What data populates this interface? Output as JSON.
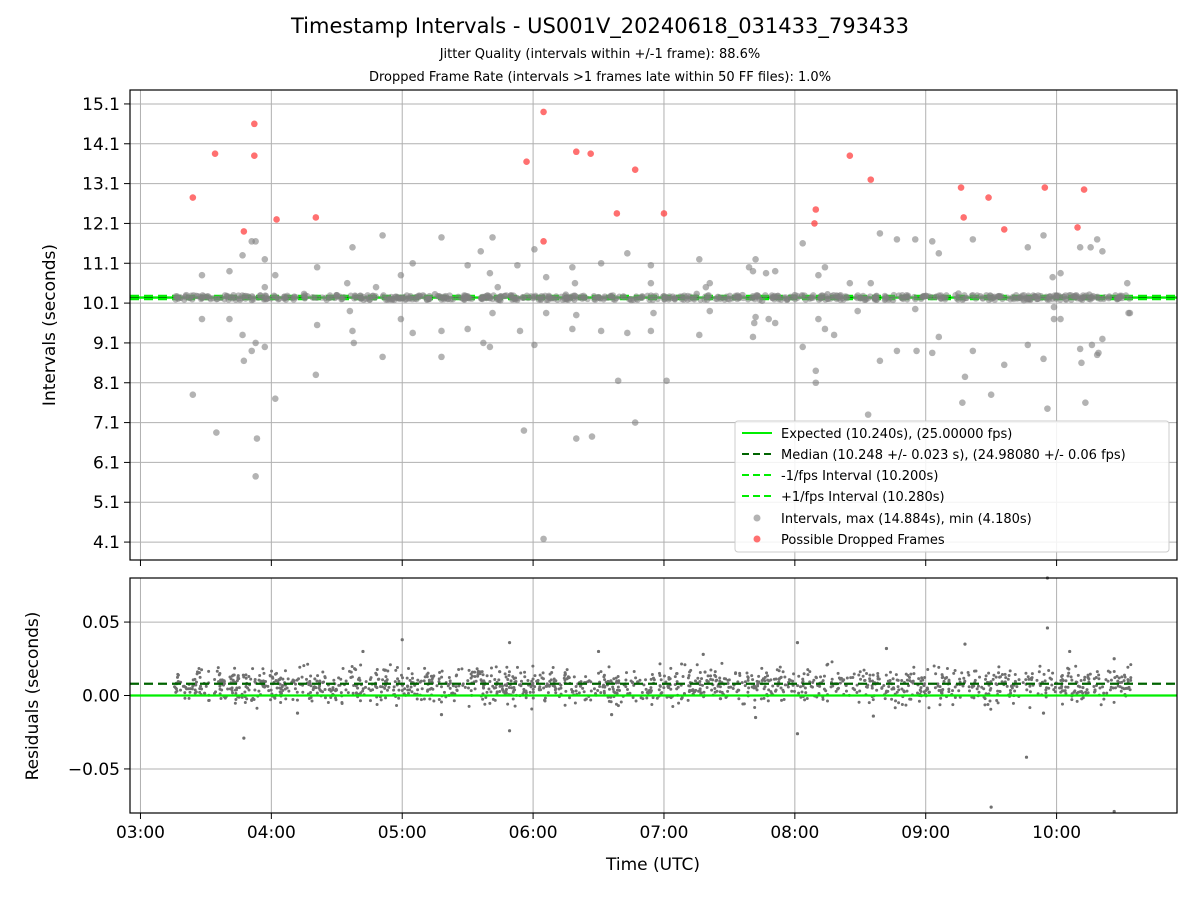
{
  "chart_data": [
    {
      "type": "scatter",
      "title": "Timestamp Intervals - US001V_20240618_031433_793433",
      "subtitle_lines": [
        "Jitter Quality (intervals within +/-1 frame): 88.6%",
        "Dropped Frame Rate (intervals >1 frames late within 50 FF files): 1.0%"
      ],
      "xlabel": "Time (UTC)",
      "ylabel": "Intervals (seconds)",
      "x_axis_unit": "hours UTC",
      "xlim": [
        2.92,
        10.92
      ],
      "ylim": [
        3.65,
        15.45
      ],
      "x_tick_values": [
        3,
        4,
        5,
        6,
        7,
        8,
        9,
        10
      ],
      "x_tick_labels": [
        "03:00",
        "04:00",
        "05:00",
        "06:00",
        "07:00",
        "08:00",
        "09:00",
        "10:00"
      ],
      "y_ticks": [
        4.1,
        5.1,
        6.1,
        7.1,
        8.1,
        9.1,
        10.1,
        11.1,
        12.1,
        13.1,
        14.1,
        15.1
      ],
      "y_tick_labels": [
        "4.1",
        "5.1",
        "6.1",
        "7.1",
        "8.1",
        "9.1",
        "10.1",
        "11.1",
        "12.1",
        "13.1",
        "14.1",
        "15.1"
      ],
      "grid": true,
      "legend_position": "lower-right",
      "reference_lines": [
        {
          "name": "Expected (10.240s), (25.00000 fps)",
          "y": 10.24,
          "style": "solid",
          "color": "#00ee00"
        },
        {
          "name": "Median (10.248 +/- 0.023 s), (24.98080 +/- 0.06 fps)",
          "y": 10.248,
          "style": "dashed",
          "color": "#006400"
        },
        {
          "name": "-1/fps Interval (10.200s)",
          "y": 10.2,
          "style": "dashed",
          "color": "#00ee00"
        },
        {
          "name": "+1/fps Interval (10.280s)",
          "y": 10.28,
          "style": "dashed",
          "color": "#00ee00"
        }
      ],
      "series": [
        {
          "name": "Intervals, max (14.884s), min (4.180s)",
          "color": "#808080",
          "points": [
            [
              3.4,
              7.8
            ],
            [
              3.47,
              10.8
            ],
            [
              3.47,
              9.7
            ],
            [
              3.58,
              6.85
            ],
            [
              3.68,
              10.9
            ],
            [
              3.68,
              9.7
            ],
            [
              3.78,
              11.3
            ],
            [
              3.78,
              9.3
            ],
            [
              3.79,
              8.65
            ],
            [
              3.85,
              8.9
            ],
            [
              3.85,
              11.65
            ],
            [
              3.88,
              11.65
            ],
            [
              3.88,
              9.1
            ],
            [
              3.89,
              6.7
            ],
            [
              3.88,
              5.75
            ],
            [
              3.95,
              11.2
            ],
            [
              3.95,
              9.0
            ],
            [
              3.95,
              10.5
            ],
            [
              4.03,
              10.8
            ],
            [
              4.03,
              7.7
            ],
            [
              4.35,
              11.0
            ],
            [
              4.35,
              9.55
            ],
            [
              4.34,
              8.3
            ],
            [
              4.58,
              10.6
            ],
            [
              4.6,
              9.9
            ],
            [
              4.62,
              11.5
            ],
            [
              4.62,
              9.4
            ],
            [
              4.63,
              9.1
            ],
            [
              4.8,
              10.5
            ],
            [
              4.85,
              11.8
            ],
            [
              4.85,
              8.75
            ],
            [
              4.99,
              10.8
            ],
            [
              4.99,
              9.7
            ],
            [
              5.08,
              11.1
            ],
            [
              5.08,
              9.35
            ],
            [
              5.3,
              11.75
            ],
            [
              5.3,
              9.4
            ],
            [
              5.3,
              8.75
            ],
            [
              5.5,
              11.05
            ],
            [
              5.5,
              9.45
            ],
            [
              5.6,
              11.4
            ],
            [
              5.62,
              9.1
            ],
            [
              5.67,
              10.85
            ],
            [
              5.67,
              9.0
            ],
            [
              5.69,
              11.75
            ],
            [
              5.69,
              9.85
            ],
            [
              5.73,
              10.5
            ],
            [
              5.88,
              11.05
            ],
            [
              5.9,
              9.4
            ],
            [
              5.93,
              6.9
            ],
            [
              6.01,
              11.45
            ],
            [
              6.01,
              9.05
            ],
            [
              6.08,
              4.18
            ],
            [
              6.1,
              10.75
            ],
            [
              6.1,
              9.85
            ],
            [
              6.3,
              11.0
            ],
            [
              6.3,
              9.45
            ],
            [
              6.32,
              10.6
            ],
            [
              6.33,
              9.8
            ],
            [
              6.33,
              6.7
            ],
            [
              6.45,
              6.75
            ],
            [
              6.52,
              11.1
            ],
            [
              6.52,
              9.4
            ],
            [
              6.65,
              8.15
            ],
            [
              6.72,
              11.35
            ],
            [
              6.72,
              9.35
            ],
            [
              6.78,
              7.1
            ],
            [
              6.9,
              11.05
            ],
            [
              6.9,
              10.6
            ],
            [
              6.9,
              9.4
            ],
            [
              6.92,
              9.85
            ],
            [
              7.02,
              8.15
            ],
            [
              7.27,
              11.2
            ],
            [
              7.27,
              9.3
            ],
            [
              7.32,
              10.5
            ],
            [
              7.35,
              10.6
            ],
            [
              7.35,
              9.9
            ],
            [
              7.6,
              10.3
            ],
            [
              7.65,
              11.0
            ],
            [
              7.68,
              10.9
            ],
            [
              7.68,
              9.25
            ],
            [
              7.69,
              9.6
            ],
            [
              7.7,
              11.2
            ],
            [
              7.7,
              9.75
            ],
            [
              7.78,
              10.85
            ],
            [
              7.8,
              9.7
            ],
            [
              7.85,
              10.9
            ],
            [
              7.85,
              9.6
            ],
            [
              8.06,
              11.6
            ],
            [
              8.06,
              9.0
            ],
            [
              8.16,
              8.4
            ],
            [
              8.16,
              8.1
            ],
            [
              8.18,
              10.8
            ],
            [
              8.18,
              9.7
            ],
            [
              8.23,
              11.0
            ],
            [
              8.23,
              9.45
            ],
            [
              8.3,
              9.3
            ],
            [
              8.42,
              10.6
            ],
            [
              8.48,
              9.9
            ],
            [
              8.56,
              7.3
            ],
            [
              8.58,
              10.6
            ],
            [
              8.65,
              11.85
            ],
            [
              8.65,
              8.65
            ],
            [
              8.78,
              11.7
            ],
            [
              8.78,
              8.9
            ],
            [
              8.92,
              11.7
            ],
            [
              8.92,
              9.95
            ],
            [
              8.93,
              8.9
            ],
            [
              9.05,
              11.65
            ],
            [
              9.05,
              8.85
            ],
            [
              9.1,
              11.35
            ],
            [
              9.1,
              9.25
            ],
            [
              9.28,
              7.6
            ],
            [
              9.3,
              8.25
            ],
            [
              9.36,
              11.7
            ],
            [
              9.36,
              8.9
            ],
            [
              9.5,
              7.8
            ],
            [
              9.6,
              8.55
            ],
            [
              9.78,
              11.5
            ],
            [
              9.78,
              9.05
            ],
            [
              9.9,
              11.8
            ],
            [
              9.9,
              8.7
            ],
            [
              9.93,
              7.45
            ],
            [
              9.97,
              10.75
            ],
            [
              9.98,
              10.0
            ],
            [
              9.98,
              9.7
            ],
            [
              10.03,
              10.85
            ],
            [
              10.03,
              9.7
            ],
            [
              10.18,
              11.5
            ],
            [
              10.18,
              8.95
            ],
            [
              10.19,
              8.6
            ],
            [
              10.22,
              7.6
            ],
            [
              10.26,
              11.5
            ],
            [
              10.27,
              9.05
            ],
            [
              10.31,
              11.7
            ],
            [
              10.31,
              8.8
            ],
            [
              10.32,
              8.85
            ],
            [
              10.35,
              11.4
            ],
            [
              10.35,
              9.2
            ],
            [
              10.54,
              10.6
            ],
            [
              10.55,
              9.85
            ],
            [
              10.56,
              9.85
            ],
            [
              3.5,
              10.25
            ],
            [
              3.7,
              10.22
            ],
            [
              4.1,
              10.26
            ],
            [
              4.5,
              10.3
            ],
            [
              5.0,
              10.22
            ],
            [
              5.5,
              10.27
            ],
            [
              6.0,
              10.23
            ],
            [
              6.5,
              10.25
            ],
            [
              7.0,
              10.27
            ],
            [
              7.5,
              10.2
            ],
            [
              8.0,
              10.3
            ],
            [
              8.5,
              10.22
            ],
            [
              9.0,
              10.28
            ],
            [
              9.5,
              10.21
            ],
            [
              10.0,
              10.29
            ],
            [
              10.5,
              10.23
            ],
            [
              3.35,
              10.3
            ],
            [
              3.85,
              10.18
            ],
            [
              4.25,
              10.33
            ],
            [
              4.75,
              10.19
            ],
            [
              5.25,
              10.32
            ],
            [
              5.75,
              10.17
            ],
            [
              6.25,
              10.31
            ],
            [
              6.75,
              10.18
            ],
            [
              7.25,
              10.33
            ],
            [
              7.75,
              10.16
            ],
            [
              8.25,
              10.32
            ],
            [
              8.75,
              10.18
            ],
            [
              9.25,
              10.34
            ],
            [
              9.75,
              10.17
            ],
            [
              10.25,
              10.31
            ]
          ]
        },
        {
          "name": "Possible Dropped Frames",
          "color": "#ff4040",
          "points": [
            [
              3.4,
              12.75
            ],
            [
              3.57,
              13.85
            ],
            [
              3.79,
              11.9
            ],
            [
              3.87,
              14.6
            ],
            [
              3.87,
              13.8
            ],
            [
              4.04,
              12.2
            ],
            [
              4.34,
              12.25
            ],
            [
              5.95,
              13.65
            ],
            [
              6.08,
              14.9
            ],
            [
              6.08,
              11.65
            ],
            [
              6.33,
              13.9
            ],
            [
              6.44,
              13.85
            ],
            [
              6.64,
              12.35
            ],
            [
              6.78,
              13.45
            ],
            [
              7.0,
              12.35
            ],
            [
              8.15,
              12.1
            ],
            [
              8.16,
              12.45
            ],
            [
              8.42,
              13.8
            ],
            [
              8.58,
              13.2
            ],
            [
              9.27,
              13.0
            ],
            [
              9.29,
              12.25
            ],
            [
              9.48,
              12.75
            ],
            [
              9.6,
              11.95
            ],
            [
              9.91,
              13.0
            ],
            [
              10.16,
              12.0
            ],
            [
              10.21,
              12.95
            ]
          ]
        }
      ]
    },
    {
      "type": "scatter",
      "xlabel": "Time (UTC)",
      "ylabel": "Residuals (seconds)",
      "x_axis_unit": "hours UTC",
      "xlim": [
        2.92,
        10.92
      ],
      "ylim": [
        -0.08,
        0.08
      ],
      "x_tick_values": [
        3,
        4,
        5,
        6,
        7,
        8,
        9,
        10
      ],
      "x_tick_labels": [
        "03:00",
        "04:00",
        "05:00",
        "06:00",
        "07:00",
        "08:00",
        "09:00",
        "10:00"
      ],
      "y_ticks": [
        -0.05,
        0.0,
        0.05
      ],
      "y_tick_labels": [
        "−0.05",
        "0.00",
        "0.05"
      ],
      "grid": true,
      "reference_lines": [
        {
          "y": 0.0,
          "style": "solid",
          "color": "#00ee00"
        },
        {
          "y": 0.008,
          "style": "dashed",
          "color": "#006400"
        }
      ],
      "residual_band": {
        "x_range": [
          3.25,
          10.58
        ],
        "typical_center": 0.007,
        "typical_spread": 0.006
      },
      "series": [
        {
          "color": "#707070",
          "points": [
            [
              3.79,
              -0.029
            ],
            [
              5.0,
              0.038
            ],
            [
              5.82,
              0.036
            ],
            [
              5.82,
              -0.024
            ],
            [
              8.02,
              0.036
            ],
            [
              8.02,
              -0.026
            ],
            [
              9.5,
              -0.076
            ],
            [
              9.77,
              -0.042
            ],
            [
              9.93,
              0.08
            ],
            [
              9.93,
              0.046
            ],
            [
              10.44,
              -0.079
            ],
            [
              10.44,
              0.025
            ],
            [
              4.7,
              0.03
            ],
            [
              6.5,
              0.03
            ],
            [
              7.3,
              0.028
            ],
            [
              8.7,
              0.032
            ],
            [
              9.3,
              0.035
            ],
            [
              10.1,
              0.03
            ],
            [
              4.2,
              -0.012
            ],
            [
              5.3,
              -0.013
            ],
            [
              6.6,
              -0.013
            ],
            [
              7.7,
              -0.015
            ],
            [
              8.6,
              -0.014
            ],
            [
              9.9,
              -0.012
            ]
          ]
        }
      ]
    }
  ]
}
